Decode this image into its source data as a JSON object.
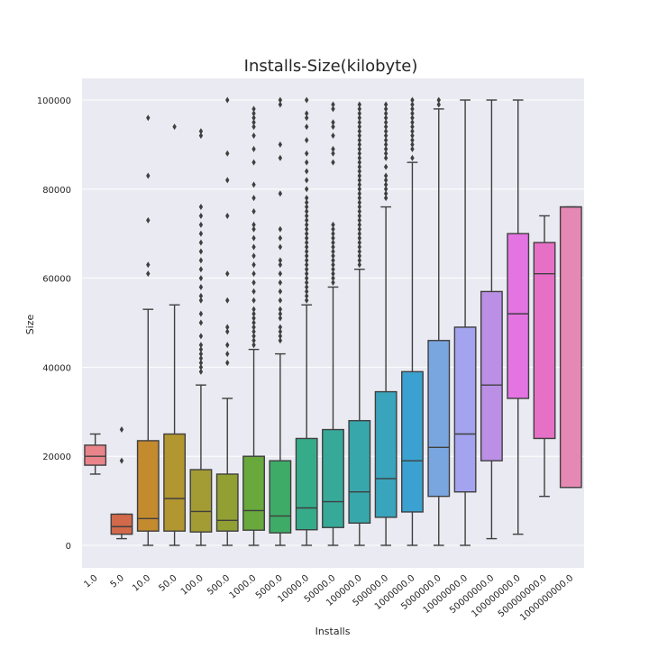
{
  "chart_data": {
    "type": "box",
    "title": "Installs-Size(kilobyte)",
    "xlabel": "Installs",
    "ylabel": "Size",
    "ylim": [
      -5000,
      105000
    ],
    "yticks": [
      0,
      20000,
      40000,
      60000,
      80000,
      100000
    ],
    "grid": true,
    "categories": [
      "1.0",
      "5.0",
      "10.0",
      "50.0",
      "100.0",
      "500.0",
      "1000.0",
      "5000.0",
      "10000.0",
      "50000.0",
      "100000.0",
      "500000.0",
      "1000000.0",
      "5000000.0",
      "10000000.0",
      "50000000.0",
      "100000000.0",
      "500000000.0",
      "1000000000.0"
    ],
    "boxes": [
      {
        "category": "1.0",
        "q1": 18000,
        "median": 20000,
        "q3": 22500,
        "whisker_low": 16000,
        "whisker_high": 25000,
        "outliers": [],
        "color": "#e8848a"
      },
      {
        "category": "5.0",
        "q1": 2500,
        "median": 4200,
        "q3": 7000,
        "whisker_low": 1500,
        "whisker_high": 7000,
        "outliers": [
          19000,
          26000
        ],
        "color": "#d2694b"
      },
      {
        "category": "10.0",
        "q1": 3200,
        "median": 6000,
        "q3": 23500,
        "whisker_low": 0,
        "whisker_high": 53000,
        "outliers": [
          61000,
          63000,
          73000,
          83000,
          96000
        ],
        "color": "#c48a2e"
      },
      {
        "category": "50.0",
        "q1": 3200,
        "median": 10500,
        "q3": 25000,
        "whisker_low": 0,
        "whisker_high": 54000,
        "outliers": [
          94000
        ],
        "color": "#b2962f"
      },
      {
        "category": "100.0",
        "q1": 3000,
        "median": 7600,
        "q3": 17000,
        "whisker_low": 0,
        "whisker_high": 36000,
        "outliers": [
          39000,
          40000,
          41000,
          42000,
          43000,
          44000,
          45000,
          47000,
          50000,
          52000,
          55000,
          56000,
          58000,
          60000,
          62000,
          64000,
          66000,
          68000,
          70000,
          72000,
          74000,
          76000,
          92000,
          93000
        ],
        "color": "#a39c34"
      },
      {
        "category": "500.0",
        "q1": 3200,
        "median": 5600,
        "q3": 16000,
        "whisker_low": 0,
        "whisker_high": 33000,
        "outliers": [
          41000,
          43000,
          45000,
          48000,
          49000,
          55000,
          61000,
          74000,
          82000,
          88000,
          100000
        ],
        "color": "#919f33"
      },
      {
        "category": "1000.0",
        "q1": 3400,
        "median": 7800,
        "q3": 20000,
        "whisker_low": 0,
        "whisker_high": 44000,
        "outliers": [
          45000,
          46000,
          47000,
          48000,
          49000,
          50000,
          51000,
          52000,
          53000,
          55000,
          57000,
          59000,
          61000,
          63000,
          65000,
          67000,
          69000,
          71000,
          72000,
          75000,
          78000,
          81000,
          86000,
          89000,
          92000,
          94000,
          95000,
          96000,
          97000,
          98000
        ],
        "color": "#68a83c"
      },
      {
        "category": "5000.0",
        "q1": 2800,
        "median": 6600,
        "q3": 19000,
        "whisker_low": 0,
        "whisker_high": 43000,
        "outliers": [
          46000,
          47000,
          48000,
          49000,
          51000,
          52000,
          53000,
          55000,
          57000,
          59000,
          61000,
          63000,
          64000,
          67000,
          69000,
          71000,
          79000,
          87000,
          90000,
          99000,
          100000
        ],
        "color": "#3eab67"
      },
      {
        "category": "10000.0",
        "q1": 3500,
        "median": 8400,
        "q3": 24000,
        "whisker_low": 0,
        "whisker_high": 54000,
        "outliers": [
          55000,
          56000,
          57000,
          58000,
          59000,
          60000,
          61000,
          62000,
          63000,
          64000,
          65000,
          66000,
          67000,
          68000,
          69000,
          70000,
          71000,
          72000,
          73000,
          74000,
          75000,
          76000,
          77000,
          78000,
          80000,
          82000,
          84000,
          86000,
          88000,
          91000,
          94000,
          96000,
          97000,
          100000
        ],
        "color": "#36ab8a"
      },
      {
        "category": "50000.0",
        "q1": 4000,
        "median": 9800,
        "q3": 26000,
        "whisker_low": 0,
        "whisker_high": 58000,
        "outliers": [
          59000,
          60000,
          61000,
          62000,
          63000,
          64000,
          65000,
          66000,
          67000,
          68000,
          69000,
          70000,
          71000,
          72000,
          86000,
          88000,
          89000,
          92000,
          94000,
          95000,
          98000,
          99000
        ],
        "color": "#37a999"
      },
      {
        "category": "100000.0",
        "q1": 5000,
        "median": 12000,
        "q3": 28000,
        "whisker_low": 0,
        "whisker_high": 62000,
        "outliers": [
          63000,
          64000,
          65000,
          66000,
          67000,
          68000,
          69000,
          70000,
          71000,
          72000,
          73000,
          74000,
          75000,
          76000,
          77000,
          78000,
          79000,
          80000,
          81000,
          82000,
          83000,
          84000,
          85000,
          86000,
          87000,
          88000,
          89000,
          90000,
          91000,
          92000,
          93000,
          94000,
          95000,
          96000,
          97000,
          98000,
          99000
        ],
        "color": "#38a7ab"
      },
      {
        "category": "500000.0",
        "q1": 6300,
        "median": 15000,
        "q3": 34500,
        "whisker_low": 0,
        "whisker_high": 76000,
        "outliers": [
          78000,
          79000,
          80000,
          81000,
          82000,
          83000,
          85000,
          87000,
          88000,
          89000,
          90000,
          91000,
          92000,
          93000,
          94000,
          95000,
          96000,
          97000,
          98000,
          99000
        ],
        "color": "#39a4bc"
      },
      {
        "category": "1000000.0",
        "q1": 7500,
        "median": 19000,
        "q3": 39000,
        "whisker_low": 0,
        "whisker_high": 86000,
        "outliers": [
          87000,
          89000,
          90000,
          91000,
          92000,
          93000,
          94000,
          95000,
          96000,
          97000,
          98000,
          99000,
          100000
        ],
        "color": "#3ba1d0"
      },
      {
        "category": "5000000.0",
        "q1": 11000,
        "median": 22000,
        "q3": 46000,
        "whisker_low": 0,
        "whisker_high": 98000,
        "outliers": [
          99000,
          100000
        ],
        "color": "#7aa6e0"
      },
      {
        "category": "10000000.0",
        "q1": 12000,
        "median": 25000,
        "q3": 49000,
        "whisker_low": 0,
        "whisker_high": 100000,
        "outliers": [],
        "color": "#a3a3ef"
      },
      {
        "category": "50000000.0",
        "q1": 19000,
        "median": 36000,
        "q3": 57000,
        "whisker_low": 1500,
        "whisker_high": 100000,
        "outliers": [],
        "color": "#bb8fe6"
      },
      {
        "category": "100000000.0",
        "q1": 33000,
        "median": 52000,
        "q3": 70000,
        "whisker_low": 2500,
        "whisker_high": 100000,
        "outliers": [],
        "color": "#e374e2"
      },
      {
        "category": "500000000.0",
        "q1": 24000,
        "median": 61000,
        "q3": 68000,
        "whisker_low": 11000,
        "whisker_high": 74000,
        "outliers": [],
        "color": "#e670c6"
      },
      {
        "category": "1000000000.0",
        "q1": 13000,
        "median": 76000,
        "q3": 76000,
        "whisker_low": 13000,
        "whisker_high": 76000,
        "outliers": [],
        "color": "#e688b4"
      }
    ]
  }
}
